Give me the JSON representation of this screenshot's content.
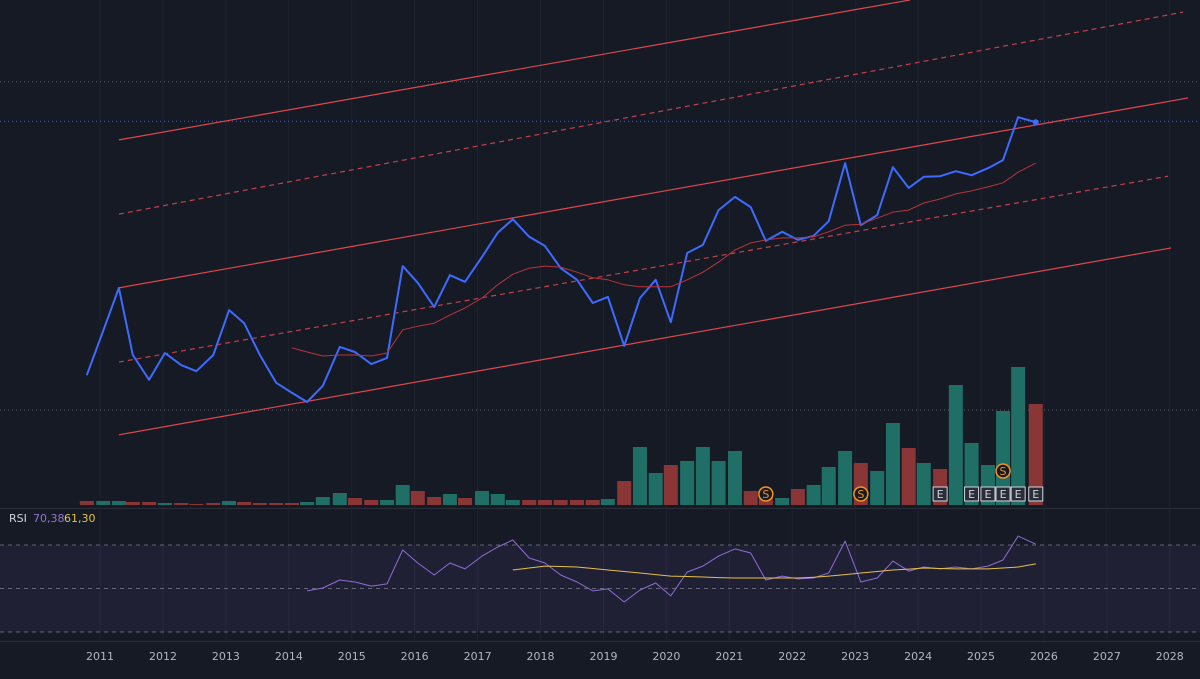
{
  "chart_data": [
    {
      "type": "line",
      "x": [
        2010.79,
        2011.05,
        2011.3,
        2011.52,
        2011.78,
        2012.03,
        2012.29,
        2012.53,
        2012.8,
        2013.05,
        2013.29,
        2013.54,
        2013.8,
        2014.05,
        2014.29,
        2014.54,
        2014.81,
        2015.05,
        2015.31,
        2015.56,
        2015.81,
        2016.05,
        2016.31,
        2016.56,
        2016.8,
        2017.07,
        2017.32,
        2017.56,
        2017.82,
        2018.07,
        2018.32,
        2018.58,
        2018.83,
        2019.07,
        2019.33,
        2019.58,
        2019.83,
        2020.07,
        2020.33,
        2020.58,
        2020.83,
        2021.09,
        2021.34,
        2021.58,
        2021.84,
        2022.09,
        2022.34,
        2022.58,
        2022.84,
        2023.09,
        2023.35,
        2023.6,
        2023.85,
        2024.09,
        2024.35,
        2024.6,
        2024.85,
        2025.11,
        2025.35,
        2025.59,
        2025.87
      ],
      "xlim": [
        2009.41,
        2028.48
      ],
      "xticks": [
        2011,
        2012,
        2013,
        2014,
        2015,
        2016,
        2017,
        2018,
        2019,
        2020,
        2021,
        2022,
        2023,
        2024,
        2025,
        2026,
        2027,
        2028
      ],
      "ylim": [
        0,
        100
      ],
      "series": [
        {
          "color": "#3d6bff",
          "marker_last": true,
          "values": [
            25.7,
            34.5,
            43.0,
            29.7,
            24.8,
            30.1,
            27.7,
            26.5,
            29.7,
            38.6,
            36.0,
            29.7,
            24.2,
            22.2,
            20.4,
            23.6,
            31.3,
            30.3,
            27.9,
            29.1,
            47.3,
            44.0,
            39.2,
            45.5,
            44.2,
            49.1,
            53.9,
            56.6,
            53.1,
            51.3,
            46.9,
            44.6,
            40.0,
            41.2,
            31.5,
            41.0,
            44.6,
            36.2,
            49.9,
            51.5,
            58.4,
            61.0,
            59.0,
            52.3,
            54.1,
            52.5,
            53.3,
            56.2,
            67.7,
            55.4,
            57.4,
            66.9,
            62.8,
            65.0,
            65.1,
            66.1,
            65.3,
            66.7,
            68.3,
            76.8,
            75.8
          ]
        },
        {
          "color": "#b8343a",
          "values": [
            null,
            null,
            null,
            null,
            null,
            null,
            null,
            null,
            null,
            null,
            null,
            null,
            null,
            31.1,
            30.3,
            29.5,
            29.7,
            29.7,
            29.5,
            30.1,
            34.7,
            35.4,
            36.0,
            37.6,
            39.0,
            41.0,
            43.6,
            45.7,
            46.9,
            47.3,
            47.1,
            46.1,
            45.0,
            44.6,
            43.6,
            43.2,
            43.2,
            43.2,
            44.6,
            46.1,
            48.1,
            50.5,
            51.9,
            52.5,
            52.9,
            52.9,
            53.1,
            54.1,
            55.4,
            55.6,
            56.8,
            58.0,
            58.4,
            59.8,
            60.6,
            61.6,
            62.2,
            63.0,
            63.8,
            65.9,
            67.7
          ]
        }
      ],
      "lines": [
        {
          "x": [
            2011.3,
            2023.87
          ],
          "values": [
            72.3,
            100
          ],
          "color": "#e0474c",
          "dashed": false
        },
        {
          "x": [
            2011.3,
            2028.21
          ],
          "values": [
            57.6,
            97.6
          ],
          "color": "#c2414a",
          "dashed": true
        },
        {
          "x": [
            2011.3,
            2028.29
          ],
          "values": [
            43.0,
            80.6
          ],
          "color": "#e0474c",
          "dashed": false
        },
        {
          "x": [
            2011.3,
            2027.97
          ],
          "values": [
            28.3,
            65.1
          ],
          "color": "#c2414a",
          "dashed": true
        },
        {
          "x": [
            2011.3,
            2028.02
          ],
          "values": [
            13.9,
            50.9
          ],
          "color": "#e0474c",
          "dashed": false
        }
      ],
      "hlines": [
        {
          "value": 83.8,
          "color": "#5d606b"
        },
        {
          "value": 76.0,
          "color": "#2962ff"
        },
        {
          "value": 18.8,
          "color": "#5d606b"
        }
      ]
    },
    {
      "type": "bar",
      "ylim": [
        0,
        200
      ],
      "values": [
        4,
        4,
        4,
        3,
        3,
        2,
        2,
        1,
        2,
        4,
        3,
        2,
        2,
        2,
        3,
        8,
        12,
        7,
        5,
        5,
        20,
        14,
        8,
        11,
        7,
        14,
        11,
        5,
        5,
        5,
        5,
        5,
        5,
        6,
        24,
        58,
        32,
        40,
        44,
        58,
        44,
        54,
        14,
        14,
        7,
        16,
        20,
        38,
        54,
        42,
        34,
        82,
        57,
        42,
        36,
        120,
        62,
        40,
        94,
        138,
        101
      ],
      "colors": [
        "#8b3636",
        "#1f6f66",
        "#1f6f66",
        "#8b3636",
        "#8b3636",
        "#1f6f66",
        "#8b3636",
        "#8b3636",
        "#8b3636",
        "#1f6f66",
        "#8b3636",
        "#8b3636",
        "#8b3636",
        "#8b3636",
        "#1f6f66",
        "#1f6f66",
        "#1f6f66",
        "#8b3636",
        "#8b3636",
        "#1f6f66",
        "#1f6f66",
        "#8b3636",
        "#8b3636",
        "#1f6f66",
        "#8b3636",
        "#1f6f66",
        "#1f6f66",
        "#1f6f66",
        "#8b3636",
        "#8b3636",
        "#8b3636",
        "#8b3636",
        "#8b3636",
        "#1f6f66",
        "#8b3636",
        "#1f6f66",
        "#1f6f66",
        "#8b3636",
        "#1f6f66",
        "#1f6f66",
        "#1f6f66",
        "#1f6f66",
        "#8b3636",
        "#8b3636",
        "#1f6f66",
        "#8b3636",
        "#1f6f66",
        "#1f6f66",
        "#1f6f66",
        "#8b3636",
        "#1f6f66",
        "#1f6f66",
        "#8b3636",
        "#1f6f66",
        "#8b3636",
        "#1f6f66",
        "#1f6f66",
        "#1f6f66",
        "#1f6f66",
        "#1f6f66",
        "#8b3636"
      ],
      "events": [
        {
          "x": 2024.35,
          "label": "E",
          "shape": "square"
        },
        {
          "x": 2024.85,
          "label": "E",
          "shape": "square"
        },
        {
          "x": 2025.11,
          "label": "E",
          "shape": "square"
        },
        {
          "x": 2025.35,
          "label": "E",
          "shape": "square"
        },
        {
          "x": 2025.59,
          "label": "E",
          "shape": "square"
        },
        {
          "x": 2025.87,
          "label": "E",
          "shape": "square"
        },
        {
          "x": 2021.58,
          "label": "S",
          "shape": "circle"
        },
        {
          "x": 2023.09,
          "label": "S",
          "shape": "circle"
        },
        {
          "x": 2025.35,
          "label": "S",
          "shape": "circle"
        }
      ]
    },
    {
      "type": "line",
      "title": "RSI",
      "ylim": [
        26.3,
        86.1
      ],
      "levels": [
        70,
        50,
        30
      ],
      "band_color": "#7e57c2",
      "series": [
        {
          "color": "#8e6bd6",
          "values": [
            null,
            null,
            null,
            null,
            null,
            null,
            null,
            null,
            null,
            null,
            null,
            null,
            null,
            null,
            48.9,
            50.2,
            53.9,
            53.0,
            51.1,
            52.1,
            67.7,
            61.7,
            56.2,
            61.7,
            59.0,
            64.9,
            69.1,
            72.3,
            64.0,
            61.7,
            56.2,
            53.0,
            48.9,
            49.8,
            43.8,
            49.3,
            52.5,
            46.6,
            57.6,
            60.3,
            64.9,
            68.2,
            66.3,
            53.9,
            55.7,
            54.4,
            54.8,
            57.1,
            71.8,
            53.0,
            54.8,
            62.6,
            58.0,
            59.9,
            59.0,
            59.9,
            59.0,
            60.3,
            63.1,
            74.1,
            70.38
          ],
          "value_labels": [
            null,
            null,
            null,
            null,
            null,
            null,
            null,
            null,
            null,
            null,
            null,
            null,
            null,
            null,
            null,
            null,
            null,
            null,
            null,
            null,
            null,
            null,
            null,
            null,
            null,
            null,
            null,
            null,
            null,
            null,
            null,
            null,
            null,
            null,
            null,
            null,
            null,
            null,
            null,
            null,
            null,
            null,
            null,
            null,
            null,
            null,
            null,
            null,
            null,
            null,
            null,
            null,
            null,
            null,
            null,
            null,
            null,
            null,
            null,
            null,
            "70,38"
          ]
        },
        {
          "color": "#e3c04a",
          "values": [
            null,
            null,
            null,
            null,
            null,
            null,
            null,
            null,
            null,
            null,
            null,
            null,
            null,
            null,
            null,
            null,
            null,
            null,
            null,
            null,
            null,
            null,
            null,
            null,
            null,
            null,
            null,
            58.5,
            59.4,
            60.3,
            60.1,
            59.9,
            59.2,
            58.5,
            57.8,
            57.1,
            56.4,
            55.7,
            55.5,
            55.3,
            55.0,
            54.8,
            54.8,
            54.8,
            54.8,
            54.8,
            55.2,
            55.7,
            56.4,
            57.1,
            57.8,
            58.5,
            58.9,
            59.4,
            59.2,
            59.0,
            59.0,
            59.0,
            59.4,
            59.9,
            61.3
          ],
          "value_labels": [
            null,
            null,
            null,
            null,
            null,
            null,
            null,
            null,
            null,
            null,
            null,
            null,
            null,
            null,
            null,
            null,
            null,
            null,
            null,
            null,
            null,
            null,
            null,
            null,
            null,
            null,
            null,
            null,
            null,
            null,
            null,
            null,
            null,
            null,
            null,
            null,
            null,
            null,
            null,
            null,
            null,
            null,
            null,
            null,
            null,
            null,
            null,
            null,
            null,
            null,
            null,
            null,
            null,
            null,
            null,
            null,
            null,
            null,
            null,
            null,
            "61,30"
          ]
        }
      ]
    }
  ]
}
